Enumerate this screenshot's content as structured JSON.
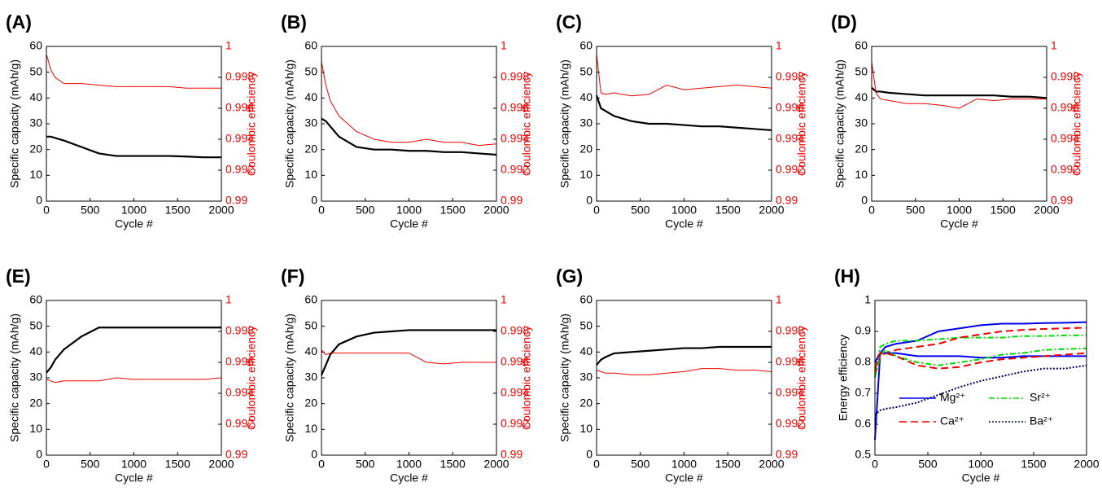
{
  "chart_data": [
    {
      "type": "line",
      "panel": "(A)",
      "xlabel": "Cycle #",
      "ylabel": "Specific capacity (mAh/g)",
      "y2label": "Coulombic efficiency",
      "x": [
        0,
        50,
        100,
        200,
        400,
        600,
        800,
        1000,
        1200,
        1400,
        1600,
        1800,
        2000
      ],
      "xlim": [
        0,
        2000
      ],
      "xticks": [
        0,
        500,
        1000,
        1500,
        2000
      ],
      "ylim": [
        0,
        60
      ],
      "yticks": [
        0,
        10,
        20,
        30,
        40,
        50,
        60
      ],
      "y2lim": [
        0.99,
        1
      ],
      "y2ticks": [
        0.99,
        0.992,
        0.994,
        0.996,
        0.998,
        1
      ],
      "series": [
        {
          "color": "#000000",
          "axis": "y",
          "values": [
            25,
            25,
            24.5,
            23.5,
            21,
            18.5,
            17.5,
            17.5,
            17.5,
            17.5,
            17.3,
            17,
            17
          ]
        },
        {
          "color": "#ee0000",
          "axis": "y2",
          "values": [
            0.9995,
            0.9985,
            0.998,
            0.9976,
            0.9976,
            0.9975,
            0.9974,
            0.9974,
            0.9974,
            0.9974,
            0.9973,
            0.9973,
            0.9973
          ]
        }
      ]
    },
    {
      "type": "line",
      "panel": "(B)",
      "xlabel": "Cycle #",
      "ylabel": "Specific capacity (mAh/g)",
      "y2label": "Coulombic efficiency",
      "x": [
        0,
        50,
        100,
        200,
        400,
        600,
        800,
        1000,
        1200,
        1400,
        1600,
        1800,
        2000
      ],
      "xlim": [
        0,
        2000
      ],
      "xticks": [
        0,
        500,
        1000,
        1500,
        2000
      ],
      "ylim": [
        0,
        60
      ],
      "yticks": [
        0,
        10,
        20,
        30,
        40,
        50,
        60
      ],
      "y2lim": [
        0.99,
        1
      ],
      "y2ticks": [
        0.99,
        0.992,
        0.994,
        0.996,
        0.998,
        1
      ],
      "series": [
        {
          "color": "#000000",
          "axis": "y",
          "values": [
            32,
            31,
            29,
            25,
            21,
            20,
            20,
            19.5,
            19.5,
            19,
            19,
            18.5,
            18
          ]
        },
        {
          "color": "#ee0000",
          "axis": "y2",
          "values": [
            0.999,
            0.9975,
            0.9965,
            0.9955,
            0.9945,
            0.994,
            0.9938,
            0.9938,
            0.994,
            0.9938,
            0.9938,
            0.9936,
            0.9937
          ]
        }
      ]
    },
    {
      "type": "line",
      "panel": "(C)",
      "xlabel": "Cycle #",
      "ylabel": "Specific capacity (mAh/g)",
      "y2label": "Coulombic efficiency",
      "x": [
        0,
        50,
        100,
        200,
        400,
        600,
        800,
        1000,
        1200,
        1400,
        1600,
        1800,
        2000
      ],
      "xlim": [
        0,
        2000
      ],
      "xticks": [
        0,
        500,
        1000,
        1500,
        2000
      ],
      "ylim": [
        0,
        60
      ],
      "yticks": [
        0,
        10,
        20,
        30,
        40,
        50,
        60
      ],
      "y2lim": [
        0.99,
        1
      ],
      "y2ticks": [
        0.99,
        0.992,
        0.994,
        0.996,
        0.998,
        1
      ],
      "series": [
        {
          "color": "#000000",
          "axis": "y",
          "values": [
            41,
            36,
            35,
            33,
            31,
            30,
            30,
            29.5,
            29,
            29,
            28.5,
            28,
            27.5
          ]
        },
        {
          "color": "#ee0000",
          "axis": "y2",
          "values": [
            0.9995,
            0.997,
            0.9969,
            0.997,
            0.9968,
            0.9969,
            0.9975,
            0.9972,
            0.9973,
            0.9974,
            0.9975,
            0.9974,
            0.9973
          ]
        }
      ]
    },
    {
      "type": "line",
      "panel": "(D)",
      "xlabel": "Cycle #",
      "ylabel": "Specific capacity (mAh/g)",
      "y2label": "Coulombic efficiency",
      "x": [
        0,
        50,
        100,
        200,
        400,
        600,
        800,
        1000,
        1200,
        1400,
        1600,
        1800,
        2000
      ],
      "xlim": [
        0,
        2000
      ],
      "xticks": [
        0,
        500,
        1000,
        1500,
        2000
      ],
      "ylim": [
        0,
        60
      ],
      "yticks": [
        0,
        10,
        20,
        30,
        40,
        50,
        60
      ],
      "y2lim": [
        0.99,
        1
      ],
      "y2ticks": [
        0.99,
        0.992,
        0.994,
        0.996,
        0.998,
        1
      ],
      "series": [
        {
          "color": "#000000",
          "axis": "y",
          "values": [
            44,
            42.5,
            42.5,
            42,
            41.5,
            41,
            41,
            41,
            41,
            41,
            40.5,
            40.5,
            40
          ]
        },
        {
          "color": "#ee0000",
          "axis": "y2",
          "values": [
            0.999,
            0.997,
            0.9966,
            0.9965,
            0.9963,
            0.9963,
            0.9962,
            0.996,
            0.9966,
            0.9965,
            0.9966,
            0.9966,
            0.9966
          ]
        }
      ]
    },
    {
      "type": "line",
      "panel": "(E)",
      "xlabel": "Cycle #",
      "ylabel": "Specific capacity (mAh/g)",
      "y2label": "Coulombic efficiency",
      "x": [
        0,
        50,
        100,
        200,
        400,
        600,
        800,
        1000,
        1200,
        1400,
        1600,
        1800,
        2000
      ],
      "xlim": [
        0,
        2000
      ],
      "xticks": [
        0,
        500,
        1000,
        1500,
        2000
      ],
      "ylim": [
        0,
        60
      ],
      "yticks": [
        0,
        10,
        20,
        30,
        40,
        50,
        60
      ],
      "y2lim": [
        0.99,
        1
      ],
      "y2ticks": [
        0.99,
        0.992,
        0.994,
        0.996,
        0.998,
        1
      ],
      "series": [
        {
          "color": "#000000",
          "axis": "y",
          "values": [
            32,
            34,
            37,
            41,
            46,
            49.5,
            49.5,
            49.5,
            49.5,
            49.5,
            49.5,
            49.5,
            49.5
          ]
        },
        {
          "color": "#ee0000",
          "axis": "y2",
          "values": [
            0.9949,
            0.9948,
            0.9947,
            0.9948,
            0.9948,
            0.9948,
            0.995,
            0.9949,
            0.9949,
            0.9949,
            0.9949,
            0.9949,
            0.995
          ]
        }
      ]
    },
    {
      "type": "line",
      "panel": "(F)",
      "xlabel": "Cycle #",
      "ylabel": "Specific capacity (mAh/g)",
      "y2label": "Coulombic efficiency",
      "x": [
        0,
        50,
        100,
        200,
        400,
        600,
        800,
        1000,
        1200,
        1400,
        1600,
        1800,
        2000
      ],
      "xlim": [
        0,
        2000
      ],
      "xticks": [
        0,
        500,
        1000,
        1500,
        2000
      ],
      "ylim": [
        0,
        60
      ],
      "yticks": [
        0,
        10,
        20,
        30,
        40,
        50,
        60
      ],
      "y2lim": [
        0.99,
        1
      ],
      "y2ticks": [
        0.99,
        0.992,
        0.994,
        0.996,
        0.998,
        1
      ],
      "series": [
        {
          "color": "#000000",
          "axis": "y",
          "values": [
            31,
            35,
            39,
            43,
            46,
            47.5,
            48,
            48.5,
            48.5,
            48.5,
            48.5,
            48.5,
            48.5
          ]
        },
        {
          "color": "#ee0000",
          "axis": "y2",
          "values": [
            0.9968,
            0.9965,
            0.9966,
            0.9966,
            0.9966,
            0.9966,
            0.9966,
            0.9966,
            0.996,
            0.9959,
            0.996,
            0.996,
            0.996
          ]
        }
      ]
    },
    {
      "type": "line",
      "panel": "(G)",
      "xlabel": "Cycle #",
      "ylabel": "Specific capacity (mAh/g)",
      "y2label": "Coulombic efficiency",
      "x": [
        0,
        50,
        100,
        200,
        400,
        600,
        800,
        1000,
        1200,
        1400,
        1600,
        1800,
        2000
      ],
      "xlim": [
        0,
        2000
      ],
      "xticks": [
        0,
        500,
        1000,
        1500,
        2000
      ],
      "ylim": [
        0,
        60
      ],
      "yticks": [
        0,
        10,
        20,
        30,
        40,
        50,
        60
      ],
      "y2lim": [
        0.99,
        1
      ],
      "y2ticks": [
        0.99,
        0.992,
        0.994,
        0.996,
        0.998,
        1
      ],
      "series": [
        {
          "color": "#000000",
          "axis": "y",
          "values": [
            35,
            37,
            38,
            39.5,
            40,
            40.5,
            41,
            41.5,
            41.5,
            42,
            42,
            42,
            42
          ]
        },
        {
          "color": "#ee0000",
          "axis": "y2",
          "values": [
            0.9955,
            0.9954,
            0.9953,
            0.9953,
            0.9952,
            0.9952,
            0.9953,
            0.9954,
            0.9956,
            0.9956,
            0.9955,
            0.9955,
            0.9954
          ]
        }
      ]
    },
    {
      "type": "line",
      "panel": "(H)",
      "xlabel": "Cycle #",
      "ylabel": "Energy efficiency",
      "legend": "lower right",
      "x": [
        0,
        50,
        100,
        200,
        400,
        600,
        800,
        1000,
        1200,
        1400,
        1600,
        1800,
        2000
      ],
      "xlim": [
        0,
        2000
      ],
      "xticks": [
        0,
        500,
        1000,
        1500,
        2000
      ],
      "ylim": [
        0.5,
        1
      ],
      "yticks": [
        0.5,
        0.6,
        0.7,
        0.8,
        0.9,
        1
      ],
      "series": [
        {
          "name": "Mg²⁺",
          "color": "#0000ee",
          "style": "solid",
          "axis": "y",
          "values": [
            0.55,
            0.83,
            0.85,
            0.86,
            0.87,
            0.9,
            0.91,
            0.92,
            0.925,
            0.925,
            0.927,
            0.928,
            0.93
          ]
        },
        {
          "name": "Sr²⁺",
          "color": "#00dd00",
          "style": "dashdot",
          "axis": "y",
          "values": [
            0.77,
            0.85,
            0.86,
            0.87,
            0.87,
            0.875,
            0.88,
            0.88,
            0.88,
            0.885,
            0.885,
            0.887,
            0.888
          ]
        },
        {
          "name": "Ca²⁺",
          "color": "#ee0000",
          "style": "dashed",
          "axis": "y",
          "values": [
            0.76,
            0.82,
            0.83,
            0.84,
            0.85,
            0.86,
            0.88,
            0.89,
            0.9,
            0.905,
            0.908,
            0.91,
            0.912
          ]
        },
        {
          "name": "Ba²⁺",
          "color": "#000055",
          "style": "dotted",
          "axis": "y",
          "values": [
            0.63,
            0.645,
            0.65,
            0.655,
            0.67,
            0.695,
            0.72,
            0.74,
            0.755,
            0.77,
            0.78,
            0.78,
            0.79
          ]
        },
        {
          "color": "#0000ee",
          "style": "solid",
          "axis": "y",
          "values": [
            0.8,
            0.83,
            0.83,
            0.83,
            0.82,
            0.82,
            0.82,
            0.815,
            0.815,
            0.82,
            0.82,
            0.82,
            0.82
          ]
        },
        {
          "color": "#00dd00",
          "style": "dashdot",
          "axis": "y",
          "values": [
            0.75,
            0.82,
            0.84,
            0.82,
            0.8,
            0.79,
            0.8,
            0.81,
            0.825,
            0.83,
            0.84,
            0.843,
            0.845
          ]
        },
        {
          "color": "#ee0000",
          "style": "dashed",
          "axis": "y",
          "values": [
            0.78,
            0.83,
            0.83,
            0.82,
            0.79,
            0.78,
            0.785,
            0.8,
            0.81,
            0.815,
            0.82,
            0.825,
            0.83
          ]
        }
      ]
    }
  ]
}
